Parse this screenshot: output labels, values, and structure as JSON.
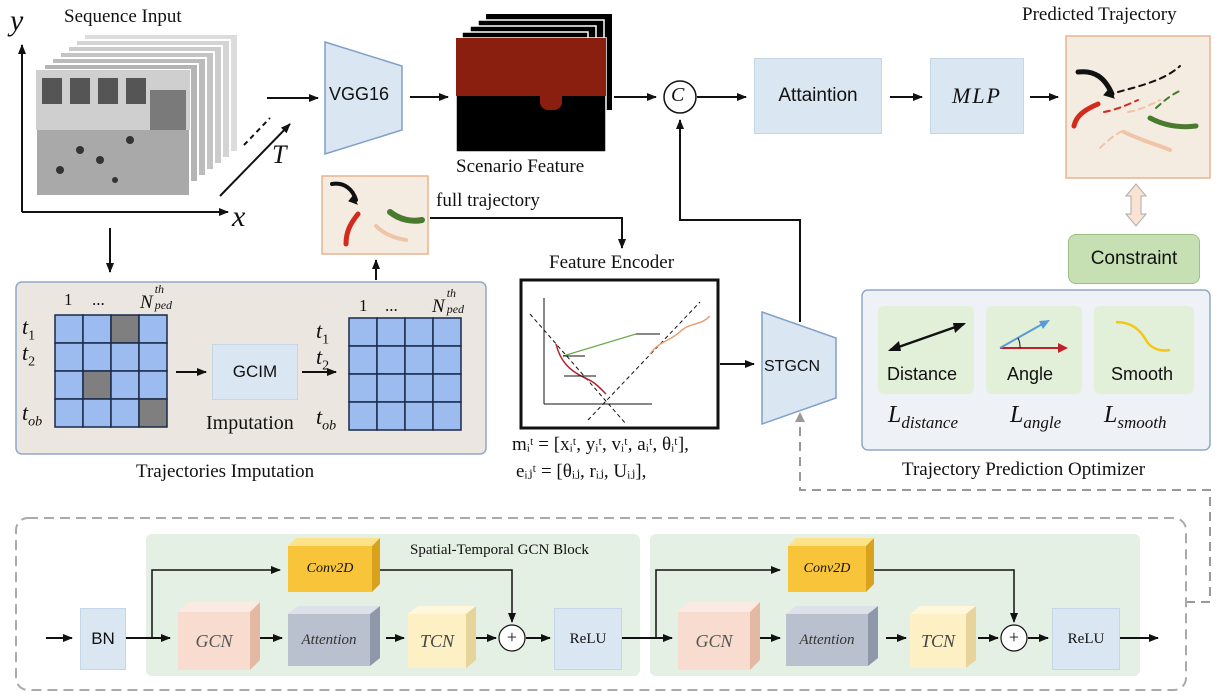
{
  "axes": {
    "y": "y",
    "x": "x",
    "t": "T"
  },
  "top": {
    "sequence_input": "Sequence Input",
    "vgg16": "VGG16",
    "scenario_feature": "Scenario Feature",
    "concat_symbol": "C",
    "attention": "Attaintion",
    "mlp": "MLP",
    "predicted_trajectory": "Predicted Trajectory",
    "full_trajectory": "full trajectory",
    "constraint": "Constraint"
  },
  "imputation": {
    "col_first": "1",
    "col_dots": "...",
    "col_last_base": "N",
    "col_last_sup": "th",
    "col_last_sub": "ped",
    "row1": "t",
    "row1_sub": "1",
    "row2": "t",
    "row2_sub": "2",
    "row_last": "t",
    "row_last_sub": "ob",
    "gcim": "GCIM",
    "imputation_label": "Imputation",
    "caption": "Trajectories Imputation"
  },
  "encoder": {
    "title": "Feature Encoder",
    "m_eq": "mᵢᵗ = [xᵢᵗ, yᵢᵗ, vᵢᵗ, aᵢᵗ, θᵢᵗ],",
    "e_eq": "eᵢⱼᵗ = [θᵢⱼ, rᵢⱼ, Uᵢⱼ],"
  },
  "stgcn": "STGCN",
  "optimizer": {
    "distance": "Distance",
    "angle": "Angle",
    "smooth": "Smooth",
    "l_distance": "L",
    "l_distance_sub": "distance",
    "l_angle": "L",
    "l_angle_sub": "angle",
    "l_smooth": "L",
    "l_smooth_sub": "smooth",
    "caption": "Trajectory Prediction Optimizer"
  },
  "gcn_block": {
    "title": "Spatial-Temporal GCN Block",
    "bn": "BN",
    "conv2d_1": "Conv2D",
    "gcn_1": "GCN",
    "attention_1": "Attention",
    "tcn_1": "TCN",
    "relu_1": "ReLU",
    "conv2d_2": "Conv2D",
    "gcn_2": "GCN",
    "attention_2": "Attention",
    "tcn_2": "TCN",
    "relu_2": "ReLU",
    "plus": "+"
  },
  "colors": {
    "blue_box": "#dae6f2",
    "green_panel": "#e3f0e3",
    "constraint_green": "#c6e0b4",
    "imputation_bg": "#ebe7e0",
    "grid_blue": "#9cbcf0",
    "grid_gray": "#7f7f7f",
    "conv2d_orange": "#f7c43a",
    "gcn_pink": "#f8dccf",
    "attention_gray": "#b9c1cf",
    "tcn_yellow": "#fdf0c4",
    "traj_red": "#d42a1c",
    "traj_green": "#4a7a2e",
    "traj_peach": "#f0c4a8",
    "scenario_red": "#8a1f10"
  }
}
